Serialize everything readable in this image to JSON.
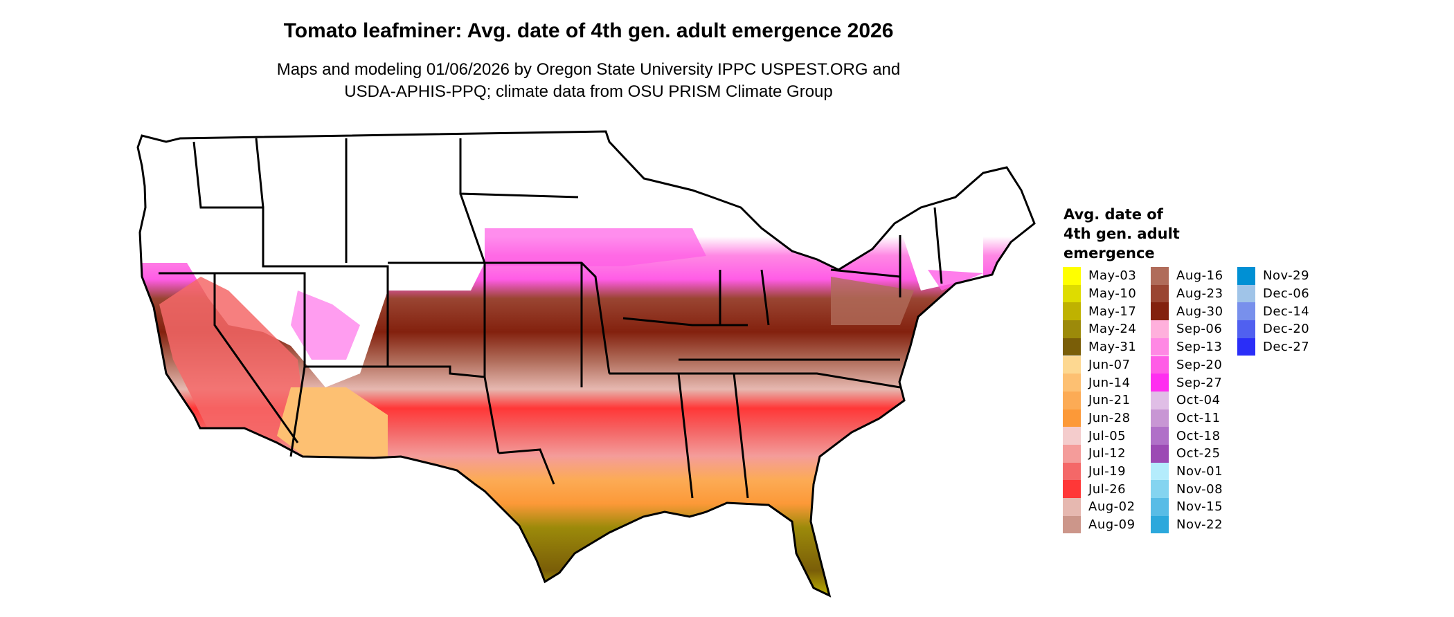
{
  "title": "Tomato leafminer: Avg. date of 4th gen. adult emergence 2026",
  "subtitle_line1": "Maps and modeling 01/06/2026 by Oregon State University IPPC USPEST.ORG and",
  "subtitle_line2": "USDA-APHIS-PPQ; climate data from OSU PRISM Climate Group",
  "legend": {
    "title_lines": [
      "Avg. date of",
      "4th gen. adult",
      "emergence"
    ],
    "items": [
      {
        "label": "May-03",
        "color": "#FFFF00"
      },
      {
        "label": "May-10",
        "color": "#DEDC00"
      },
      {
        "label": "May-17",
        "color": "#BFB200"
      },
      {
        "label": "May-24",
        "color": "#9C8A0A"
      },
      {
        "label": "May-31",
        "color": "#7A5E08"
      },
      {
        "label": "Jun-07",
        "color": "#FDD891"
      },
      {
        "label": "Jun-14",
        "color": "#FDC072"
      },
      {
        "label": "Jun-21",
        "color": "#FCAB55"
      },
      {
        "label": "Jun-28",
        "color": "#FC9938"
      },
      {
        "label": "Jul-05",
        "color": "#F4CCCC"
      },
      {
        "label": "Jul-12",
        "color": "#F49C9A"
      },
      {
        "label": "Jul-19",
        "color": "#F46868"
      },
      {
        "label": "Jul-26",
        "color": "#FF3737"
      },
      {
        "label": "Aug-02",
        "color": "#E6B8B0"
      },
      {
        "label": "Aug-09",
        "color": "#CC968A"
      },
      {
        "label": "Aug-16",
        "color": "#B06C5A"
      },
      {
        "label": "Aug-23",
        "color": "#9A4532"
      },
      {
        "label": "Aug-30",
        "color": "#83210E"
      },
      {
        "label": "Sep-06",
        "color": "#FFB0DC"
      },
      {
        "label": "Sep-13",
        "color": "#FF88E4"
      },
      {
        "label": "Sep-20",
        "color": "#FF5CE6"
      },
      {
        "label": "Sep-27",
        "color": "#FF2EF0"
      },
      {
        "label": "Oct-04",
        "color": "#E0BEE6"
      },
      {
        "label": "Oct-11",
        "color": "#C896D4"
      },
      {
        "label": "Oct-18",
        "color": "#B070C8"
      },
      {
        "label": "Oct-25",
        "color": "#9C4AB4"
      },
      {
        "label": "Nov-01",
        "color": "#B4ECFC"
      },
      {
        "label": "Nov-08",
        "color": "#84D4F0"
      },
      {
        "label": "Nov-15",
        "color": "#58BCE6"
      },
      {
        "label": "Nov-22",
        "color": "#2CA8DC"
      },
      {
        "label": "Nov-29",
        "color": "#0090D4"
      },
      {
        "label": "Dec-06",
        "color": "#A0C4E8"
      },
      {
        "label": "Dec-14",
        "color": "#7890EC"
      },
      {
        "label": "Dec-20",
        "color": "#5060F0"
      },
      {
        "label": "Dec-27",
        "color": "#2A2EF8"
      }
    ]
  }
}
